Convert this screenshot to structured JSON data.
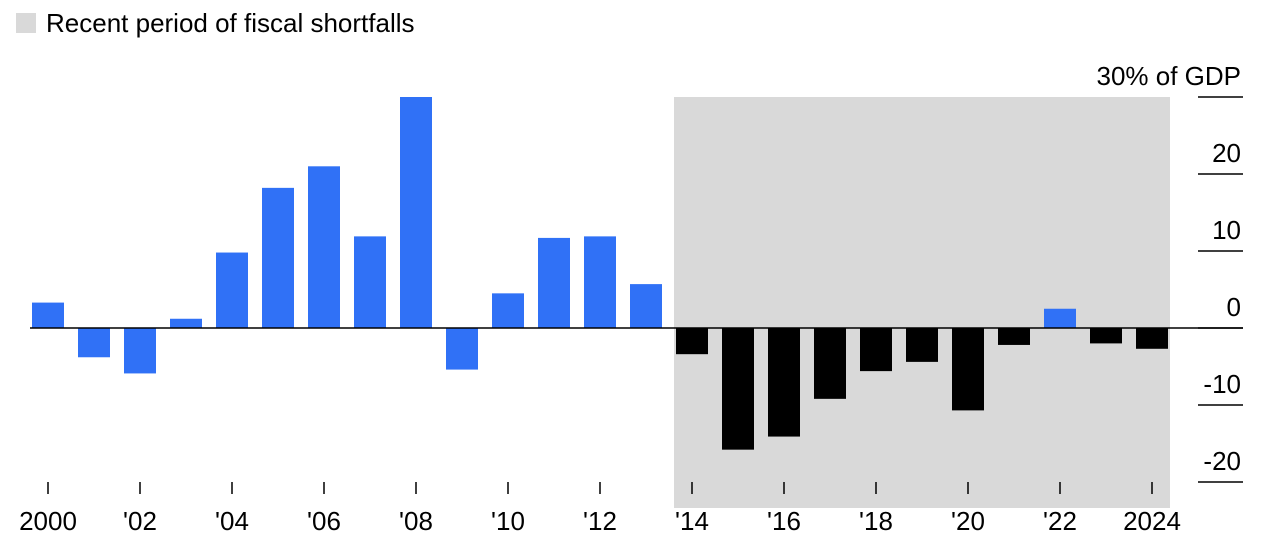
{
  "legend": {
    "label": "Recent period of fiscal shortfalls",
    "swatch_color": "#d9d9d9"
  },
  "chart_data": {
    "type": "bar",
    "unit_label": "30% of GDP",
    "categories": [
      "2000",
      "2001",
      "2002",
      "2003",
      "2004",
      "2005",
      "2006",
      "2007",
      "2008",
      "2009",
      "2010",
      "2011",
      "2012",
      "2013",
      "2014",
      "2015",
      "2016",
      "2017",
      "2018",
      "2019",
      "2020",
      "2021",
      "2022",
      "2023",
      "2024"
    ],
    "values": [
      3.3,
      -3.8,
      -5.9,
      1.2,
      9.8,
      18.2,
      21.0,
      11.9,
      30.0,
      -5.4,
      4.5,
      11.7,
      11.9,
      5.7,
      -3.4,
      -15.8,
      -14.1,
      -9.2,
      -5.6,
      -4.4,
      -10.7,
      -2.2,
      2.5,
      -2.0,
      -2.7
    ],
    "colors": {
      "positive": "#3071f6",
      "negative": "#000000",
      "shade": "#d9d9d9"
    },
    "shaded_range": [
      "2014",
      "2024"
    ],
    "ylim": [
      -20,
      30
    ],
    "yticks": [
      30,
      20,
      10,
      0,
      -10,
      -20
    ],
    "ytick_labels": [
      "30% of GDP",
      "20",
      "10",
      "0",
      "-10",
      "-20"
    ],
    "xtick_labels": [
      {
        "category": "2000",
        "label": "2000"
      },
      {
        "category": "2002",
        "label": "'02"
      },
      {
        "category": "2004",
        "label": "'04"
      },
      {
        "category": "2006",
        "label": "'06"
      },
      {
        "category": "2008",
        "label": "'08"
      },
      {
        "category": "2010",
        "label": "'10"
      },
      {
        "category": "2012",
        "label": "'12"
      },
      {
        "category": "2014",
        "label": "'14"
      },
      {
        "category": "2016",
        "label": "'16"
      },
      {
        "category": "2018",
        "label": "'18"
      },
      {
        "category": "2020",
        "label": "'20"
      },
      {
        "category": "2022",
        "label": "'22"
      },
      {
        "category": "2024",
        "label": "2024"
      }
    ]
  }
}
